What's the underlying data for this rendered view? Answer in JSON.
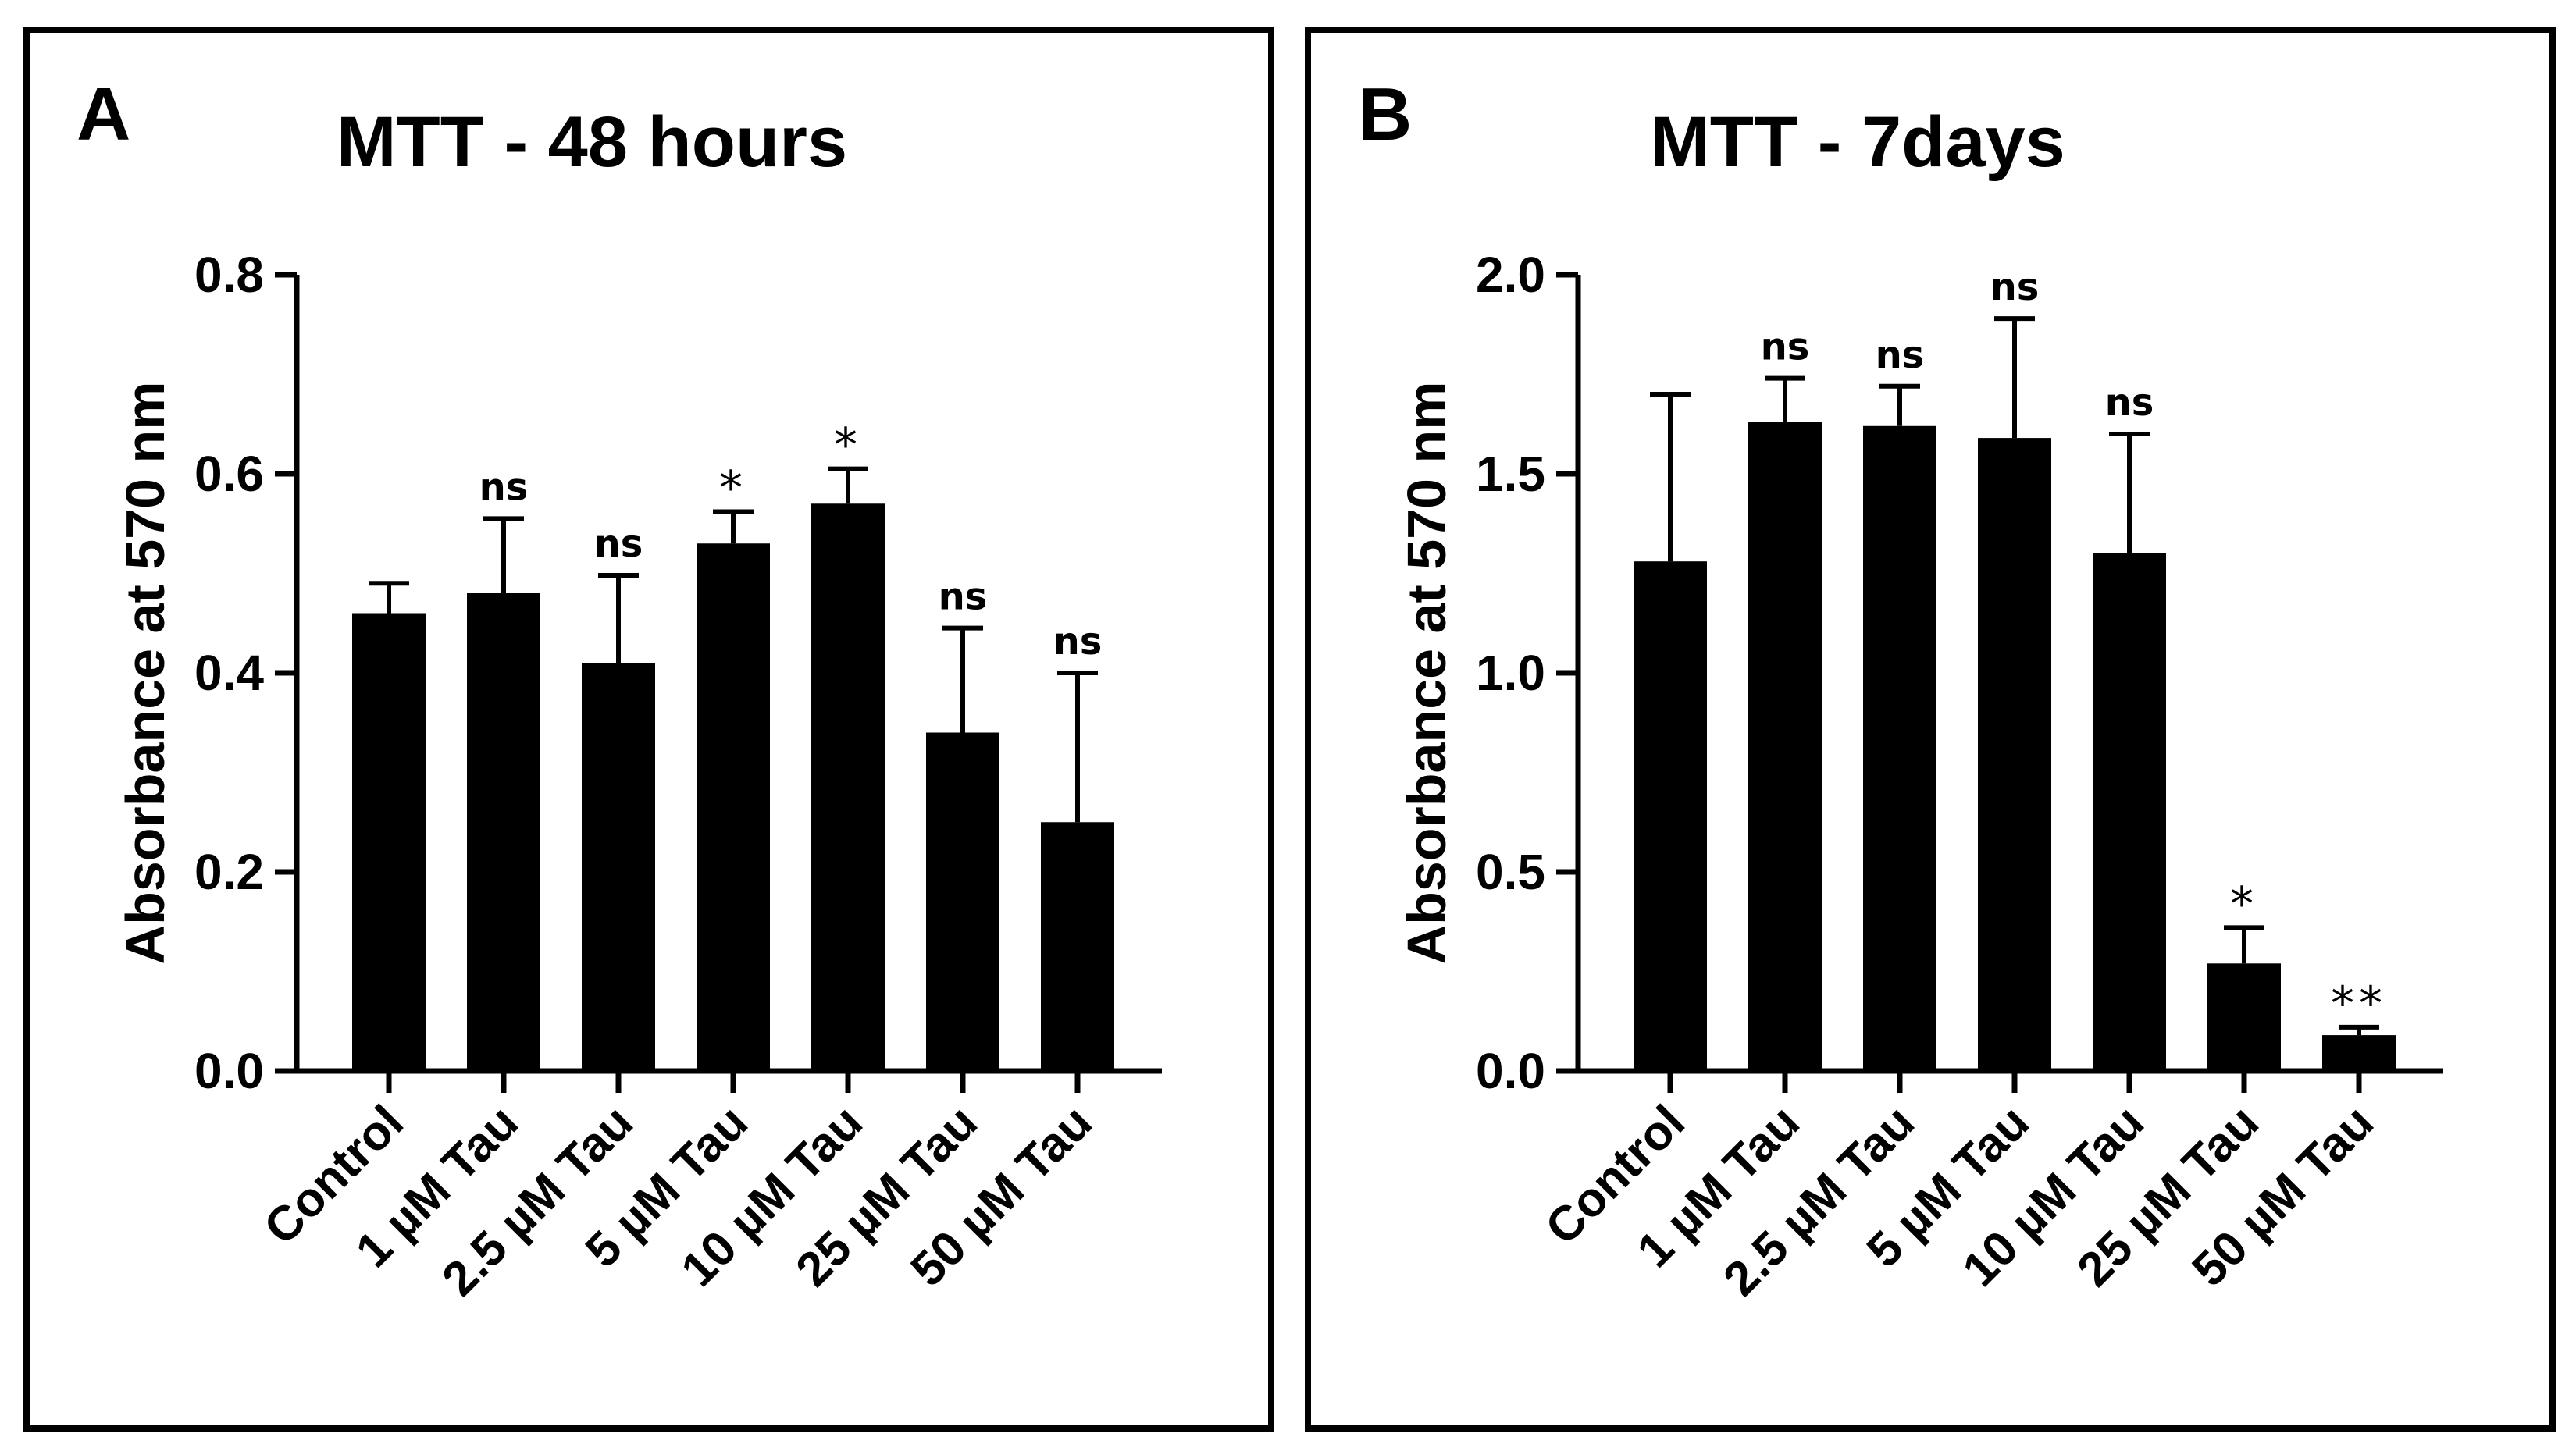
{
  "chart_data": [
    {
      "type": "bar",
      "panel_label": "A",
      "title": "MTT - 48 hours",
      "xlabel": "",
      "ylabel": "Absorbance at 570 nm",
      "ylim": [
        0,
        0.8
      ],
      "yticks": [
        "0.0",
        "0.2",
        "0.4",
        "0.6",
        "0.8"
      ],
      "categories": [
        "Control",
        "1 µM Tau",
        "2.5 µM Tau",
        "5 µM Tau",
        "10 µM Tau",
        "25 µM Tau",
        "50 µM Tau"
      ],
      "values": [
        0.46,
        0.48,
        0.41,
        0.53,
        0.57,
        0.34,
        0.25
      ],
      "errors": [
        0.03,
        0.075,
        0.088,
        0.032,
        0.035,
        0.105,
        0.15
      ],
      "annotations": [
        "",
        "ns",
        "ns",
        "*",
        "*",
        "ns",
        "ns"
      ],
      "bar_color": "#000000"
    },
    {
      "type": "bar",
      "panel_label": "B",
      "title": "MTT - 7days",
      "xlabel": "",
      "ylabel": "Absorbance at 570 nm",
      "ylim": [
        0,
        2.0
      ],
      "yticks": [
        "0.0",
        "0.5",
        "1.0",
        "1.5",
        "2.0"
      ],
      "categories": [
        "Control",
        "1 µM Tau",
        "2.5 µM Tau",
        "5 µM Tau",
        "10 µM Tau",
        "25 µM Tau",
        "50 µM Tau"
      ],
      "values": [
        1.28,
        1.63,
        1.62,
        1.59,
        1.3,
        0.27,
        0.09
      ],
      "errors": [
        0.42,
        0.11,
        0.1,
        0.3,
        0.3,
        0.09,
        0.02
      ],
      "annotations": [
        "",
        "ns",
        "ns",
        "ns",
        "ns",
        "*",
        "**"
      ],
      "bar_color": "#000000"
    }
  ]
}
